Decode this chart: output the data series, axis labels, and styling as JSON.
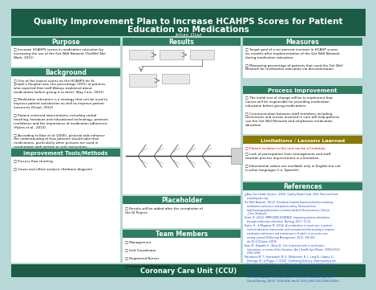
{
  "bg_color": "#b8d8d8",
  "header_bg": "#1a5c45",
  "header_text_color": "#ffffff",
  "section_header_bg": "#2e7d5e",
  "section_header_text": "#ffffff",
  "lim_header_bg": "#8b7a00",
  "footer_bg": "#1a5c45",
  "footer_text": "#ffffff",
  "body_text_color": "#111111",
  "ref_text_color": "#1a44cc",
  "title_line1": "Quality Improvement Plan to Increase HCAHPS Scores for Patient",
  "title_line2": "Education on Medications",
  "author": "Johan Diaz",
  "purpose_content": "□ Increase HCAHPS scores in medication education by\nincreasing the use of the Get Well Network (GetWell Net\nWork, 2011)",
  "background_content": "□ One of the lowest scores on the HCAHPS for St.\nJoseph's Hospital was 'the percentage (59%) of patients\nwho reported that staff Always explained about\nmedications before giving it to them' (Bay Care, 2013).\n\n□ Medication education is a strategy that can be used to\nimprove patient satisfaction as well as improve patient\noutcomes (Grant, 2012).\n\n□ Patient-centered interventions, including verbal\nteaching, handouts and educational technology, promote\nconfidence and the importance of medication adherence\n(Hykes et al., 2014).\n\n□ According to Katz et al (2006), pictorial aids enhance\nthe understanding of how patients should take their\nmedications, particularly when pictures are used in\ncombination with written or oral instructions.",
  "tools_content": "□ Process flow charting\n\n□ Cause and effect analysis (fishbone diagram)",
  "measures_content": "□ Target goal of a ten percent increase in HCAHP scores\nsix months after implementation of the Get Well Network\nduring medication education.\n\n□ Measuring percentage of patients that used the Get Well\nNetwork for medication education via documentation.",
  "process_content": "□ The initial test of change will be to implement that\nnurses will be responsible for providing medication\neducation before giving medications.\n\n□ Communication between staff members including\ntechnicians and nurses involved in care will help patients\nuse the Get Well Network and emphasize medication\neducation.",
  "lim_content_red": "□ Patient isolation in the unit can be a limitation.",
  "lim_content": "□ Lack of participation from management and staff\ntowards process improvement is a limitation.\n\n□ Educational videos are available only in English but not\nin other languages (i.e. Spanish).",
  "placeholder_content": "□ Results will be added after the completion of\nthe QI Project.",
  "team_content": "□ Management\n\n□ Unit Coordinator\n\n□ Registered Nurses\n\n□ Patient Care Technicians",
  "ref_content": "□Bay Care Health System. (2014). Quality Report Card. 2014. Retrieved from\n   www.baycare.org\nGet Well Network. (2011). Emotional hospital-based medication teaching,\n   medication adherence and patient safety. Retrieved from\n   http://www.getwellnetwork.com/sites/default/files/resources_Clinical\n   _Case_Study.pdf\nGrant, B. (2012). IMPROVING EVIDENCE: Improving patient satisfaction\n   through medication education. Nursing, 42(5), 13-14.\nHykes, H., & Bhagwat, M. (2014). A combination of usual care, a patient-\n   centred education intervention and motivational interviewing to improve\n   medication adherence and maintenance of adults in an acute-care\n   setting. Journal Of Nursing Management, 2013, 390-401.\n   doi:10.1111/jonm.12035\nKatz, M., Kripalani S., Weiss B.: Use of pictorial aids in medication\n   instructions: a review of the literature. Am J Health Syst Pharm. 2006;63(12):\n   2391-2398\nMacabasco M. T., Haerizadeh, M. K., Blashimoto, N. J., Lang N., Duprey, D.,\n   Domingo, M., & Phipps, T. (2014). Confirming Delivery: Understanding the\n   Role of the Get Well Network in Medication Administration Safety. Qualitative\n   Health Research, 24(4), 534. doi:10.1177/1049732314525907\nUmuro R., Bella, B., Kiss S., & Peridal, S. (2008). Evaluation of a nursing\n   intervention project to promote patient medication education. Journal Of\n   Clinical Nursing, 18(17), 2530-2536. doi:10.1111/j.1365-2702.2008.02564.x",
  "footer": "Coronary Care Unit (CCU)"
}
